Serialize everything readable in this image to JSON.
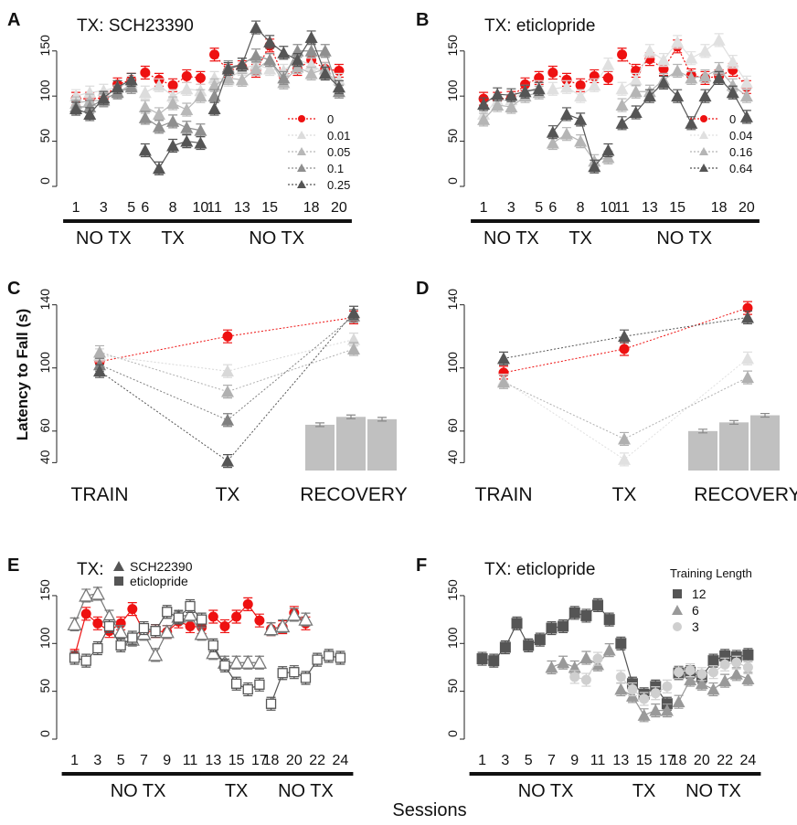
{
  "ylabel": "Latency to Fall (s)",
  "xlabel": "Sessions",
  "colors": {
    "red": "#ee1111",
    "red_err": "#e84a4a",
    "bar": "#c0c0c0"
  },
  "chart_data": [
    {
      "id": "A",
      "type": "line",
      "title": "TX: SCH23390",
      "ylim": [
        0,
        170
      ],
      "y_ticks": [
        0,
        50,
        100,
        150
      ],
      "x_ticks": [
        "1",
        "3",
        "5",
        "6",
        "8",
        "10",
        "11",
        "13",
        "15",
        "18",
        "20"
      ],
      "groups": [
        {
          "label": "NO TX",
          "from": 1,
          "to": 5
        },
        {
          "label": "TX",
          "from": 6,
          "to": 10
        },
        {
          "label": "NO TX",
          "from": 11,
          "to": 20
        }
      ],
      "legend": [
        "0",
        "0.01",
        "0.05",
        "0.1",
        "0.25"
      ],
      "series": [
        {
          "name": "0",
          "color": "#ee1111",
          "values": [
            97,
            97,
            98,
            113,
            118,
            126,
            118,
            112,
            122,
            120,
            146,
            128,
            132,
            128,
            156,
            122,
            130,
            140,
            130,
            128
          ]
        },
        {
          "name": "0.01",
          "color": "#dcdcdc",
          "values": [
            100,
            104,
            106,
            110,
            115,
            104,
            112,
            100,
            108,
            106,
            120,
            118,
            130,
            135,
            130,
            128,
            140,
            135,
            125,
            118
          ]
        },
        {
          "name": "0.05",
          "color": "#b8b8b8",
          "values": [
            92,
            95,
            95,
            105,
            112,
            88,
            80,
            92,
            85,
            100,
            112,
            120,
            118,
            130,
            140,
            115,
            132,
            125,
            130,
            110
          ]
        },
        {
          "name": "0.1",
          "color": "#8f8f8f",
          "values": [
            88,
            88,
            96,
            104,
            110,
            76,
            66,
            72,
            65,
            62,
            100,
            132,
            135,
            145,
            140,
            120,
            150,
            150,
            150,
            105
          ]
        },
        {
          "name": "0.25",
          "color": "#555555",
          "values": [
            86,
            80,
            98,
            110,
            118,
            40,
            20,
            45,
            50,
            48,
            86,
            130,
            135,
            176,
            160,
            148,
            140,
            165,
            125,
            110
          ]
        }
      ]
    },
    {
      "id": "B",
      "type": "line",
      "title": "TX: eticlopride",
      "ylim": [
        0,
        170
      ],
      "y_ticks": [
        0,
        50,
        100,
        150
      ],
      "x_ticks": [
        "1",
        "3",
        "5",
        "6",
        "8",
        "10",
        "11",
        "13",
        "15",
        "18",
        "20"
      ],
      "groups": [
        {
          "label": "NO TX",
          "from": 1,
          "to": 5
        },
        {
          "label": "TX",
          "from": 6,
          "to": 10
        },
        {
          "label": "NO TX",
          "from": 11,
          "to": 20
        }
      ],
      "legend": [
        "0",
        "0.04",
        "0.16",
        "0.64"
      ],
      "series": [
        {
          "name": "0",
          "color": "#ee1111",
          "values": [
            97,
            97,
            98,
            113,
            120,
            126,
            118,
            112,
            122,
            120,
            146,
            128,
            141,
            130,
            155,
            123,
            120,
            122,
            129,
            110
          ]
        },
        {
          "name": "0.04",
          "color": "#e0e0e0",
          "values": [
            80,
            95,
            96,
            105,
            110,
            108,
            110,
            100,
            112,
            135,
            108,
            118,
            150,
            140,
            160,
            142,
            150,
            162,
            138,
            115
          ]
        },
        {
          "name": "0.16",
          "color": "#b5b5b5",
          "values": [
            74,
            90,
            88,
            100,
            104,
            48,
            58,
            50,
            28,
            32,
            90,
            105,
            105,
            118,
            128,
            120,
            122,
            130,
            112,
            100
          ]
        },
        {
          "name": "0.64",
          "color": "#555555",
          "values": [
            91,
            102,
            101,
            105,
            108,
            60,
            80,
            74,
            22,
            40,
            70,
            82,
            100,
            115,
            100,
            70,
            100,
            120,
            104,
            77
          ]
        }
      ]
    },
    {
      "id": "C",
      "type": "line",
      "ylim": [
        35,
        145
      ],
      "y_ticks": [
        40,
        60,
        100,
        140
      ],
      "categories": [
        "TRAIN",
        "TX",
        "RECOVERY"
      ],
      "series": [
        {
          "name": "0",
          "color": "#ee1111",
          "values": [
            104,
            120,
            132
          ]
        },
        {
          "name": "0.01",
          "color": "#d8d8d8",
          "values": [
            108,
            98,
            118
          ]
        },
        {
          "name": "0.05",
          "color": "#b0b0b0",
          "values": [
            110,
            85,
            112
          ]
        },
        {
          "name": "0.1",
          "color": "#808080",
          "values": [
            102,
            67,
            133
          ]
        },
        {
          "name": "0.25",
          "color": "#555555",
          "values": [
            98,
            41,
            135
          ]
        }
      ],
      "bars": [
        64,
        69,
        67.5
      ]
    },
    {
      "id": "D",
      "type": "line",
      "ylim": [
        35,
        145
      ],
      "y_ticks": [
        40,
        60,
        100,
        140
      ],
      "categories": [
        "TRAIN",
        "TX",
        "RECOVERY"
      ],
      "series": [
        {
          "name": "0",
          "color": "#ee1111",
          "values": [
            97,
            112,
            138
          ]
        },
        {
          "name": "0.04",
          "color": "#e0e0e0",
          "values": [
            92,
            42,
            106
          ]
        },
        {
          "name": "0.16",
          "color": "#b0b0b0",
          "values": [
            91,
            55,
            94
          ]
        },
        {
          "name": "0.64",
          "color": "#555555",
          "values": [
            106,
            120,
            132
          ]
        }
      ],
      "bars": [
        60,
        65.5,
        70
      ]
    },
    {
      "id": "E",
      "type": "line",
      "title": "TX:",
      "ylim": [
        0,
        170
      ],
      "y_ticks": [
        0,
        50,
        100,
        150
      ],
      "x_ticks": [
        "1",
        "3",
        "5",
        "7",
        "9",
        "11",
        "13",
        "15",
        "17",
        "18",
        "20",
        "22",
        "24"
      ],
      "groups": [
        {
          "label": "NO TX",
          "from": 1,
          "to": 12
        },
        {
          "label": "TX",
          "from": 13,
          "to": 17
        },
        {
          "label": "NO TX",
          "from": 18,
          "to": 24
        }
      ],
      "legend": [
        "SCH22390",
        "eticlopride"
      ],
      "series": [
        {
          "name": "red",
          "color": "#ee1111",
          "x": [
            1,
            2,
            3,
            4,
            5,
            6,
            7,
            8,
            9,
            10,
            11,
            12,
            13,
            14,
            15,
            16,
            17,
            18,
            19,
            20,
            21
          ],
          "values": [
            87,
            131,
            121,
            113,
            121,
            136,
            112,
            113,
            112,
            123,
            118,
            117,
            128,
            118,
            128,
            141,
            124,
            115,
            117,
            132,
            121
          ]
        },
        {
          "name": "SCH22390",
          "color": "#777777",
          "x": [
            1,
            2,
            3,
            4,
            5,
            6,
            7,
            8,
            9,
            10,
            11,
            12,
            13,
            14,
            15,
            16,
            17,
            18,
            19,
            20,
            21
          ],
          "values": [
            120,
            150,
            152,
            128,
            112,
            104,
            110,
            88,
            112,
            128,
            130,
            110,
            90,
            80,
            80,
            80,
            80,
            115,
            118,
            130,
            125
          ]
        },
        {
          "name": "eticlopride",
          "color": "#555555",
          "x": [
            1,
            2,
            3,
            4,
            5,
            6,
            7,
            8,
            9,
            10,
            11,
            12,
            13,
            14,
            15,
            16,
            17,
            18,
            19,
            20,
            21,
            22,
            23,
            24
          ],
          "values": [
            85,
            82,
            95,
            118,
            98,
            106,
            116,
            113,
            133,
            127,
            139,
            125,
            98,
            77,
            58,
            52,
            57,
            37,
            69,
            70,
            64,
            83,
            87,
            85
          ]
        }
      ]
    },
    {
      "id": "F",
      "type": "line",
      "title": "TX: eticlopride",
      "ylim": [
        0,
        170
      ],
      "y_ticks": [
        0,
        50,
        100,
        150
      ],
      "x_ticks": [
        "1",
        "3",
        "5",
        "7",
        "9",
        "11",
        "13",
        "15",
        "17",
        "18",
        "20",
        "22",
        "24"
      ],
      "groups": [
        {
          "label": "NO TX",
          "from": 1,
          "to": 12
        },
        {
          "label": "TX",
          "from": 13,
          "to": 17
        },
        {
          "label": "NO TX",
          "from": 18,
          "to": 24
        }
      ],
      "legend_title": "Training Length",
      "legend": [
        "12",
        "6",
        "3"
      ],
      "series": [
        {
          "name": "12",
          "color": "#555555",
          "x": [
            1,
            2,
            3,
            4,
            5,
            6,
            7,
            8,
            9,
            10,
            11,
            12,
            13,
            14,
            15,
            16,
            17,
            18,
            19,
            20,
            21,
            22,
            23,
            24
          ],
          "values": [
            84,
            82,
            96,
            121,
            98,
            104,
            116,
            118,
            132,
            129,
            140,
            125,
            100,
            58,
            47,
            55,
            37,
            69,
            70,
            65,
            82,
            87,
            86,
            88
          ]
        },
        {
          "name": "6",
          "color": "#999999",
          "x": [
            7,
            8,
            9,
            10,
            11,
            12,
            13,
            14,
            15,
            16,
            17,
            18,
            19,
            20,
            21,
            22,
            23,
            24
          ],
          "values": [
            75,
            80,
            75,
            85,
            78,
            93,
            52,
            45,
            25,
            30,
            30,
            39,
            62,
            58,
            52,
            61,
            68,
            63
          ]
        },
        {
          "name": "3",
          "color": "#cfcfcf",
          "x": [
            9,
            10,
            11,
            13,
            14,
            15,
            16,
            17,
            18,
            19,
            20,
            21,
            22,
            23,
            24
          ],
          "values": [
            65,
            62,
            84,
            65,
            52,
            42,
            48,
            55,
            70,
            72,
            68,
            70,
            78,
            80,
            75
          ]
        }
      ]
    }
  ]
}
